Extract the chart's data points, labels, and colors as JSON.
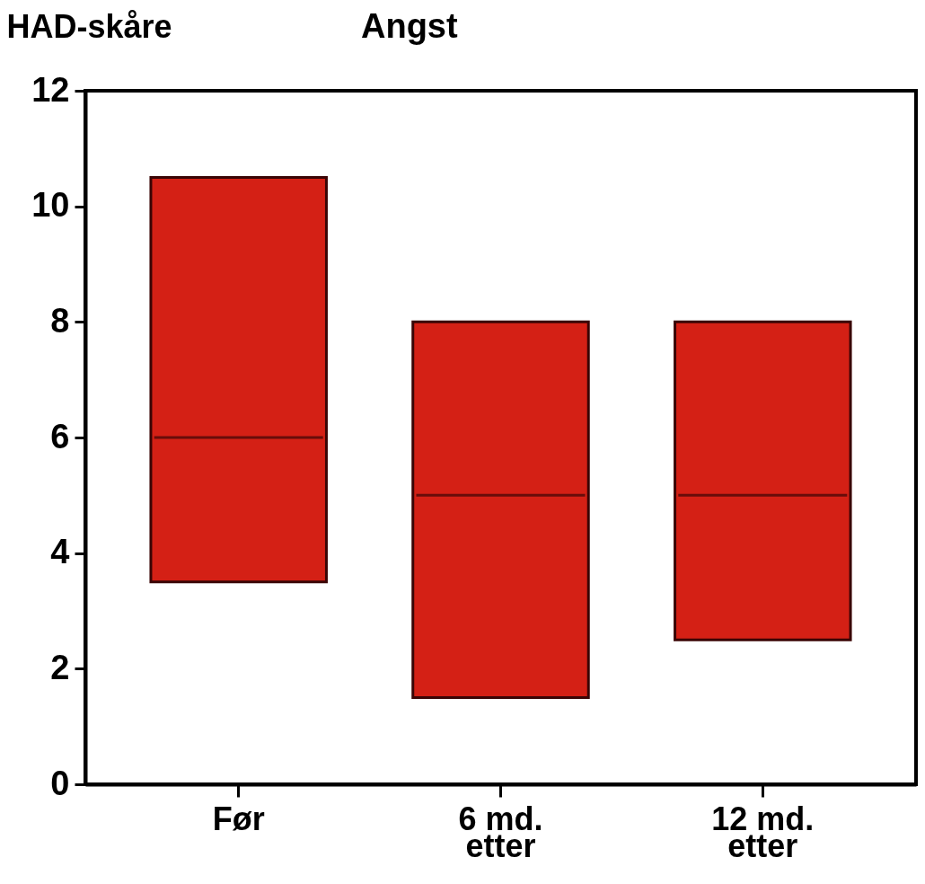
{
  "chart_data": {
    "type": "box",
    "title": "Angst",
    "ylabel": "HAD-skåre",
    "categories": [
      "Før",
      "6 md.\netter",
      "12 md.\netter"
    ],
    "boxes": [
      {
        "low": 3.5,
        "q1": 3.5,
        "median": 6,
        "q3": 10.5,
        "high": 10.5
      },
      {
        "low": 1.5,
        "q1": 1.5,
        "median": 5,
        "q3": 8,
        "high": 8
      },
      {
        "low": 2.5,
        "q1": 2.5,
        "median": 5,
        "q3": 8,
        "high": 8
      }
    ],
    "color": "#d42015",
    "ylim": [
      0,
      12
    ],
    "yticks": [
      0,
      2,
      4,
      6,
      8,
      10,
      12
    ],
    "grid": false
  }
}
